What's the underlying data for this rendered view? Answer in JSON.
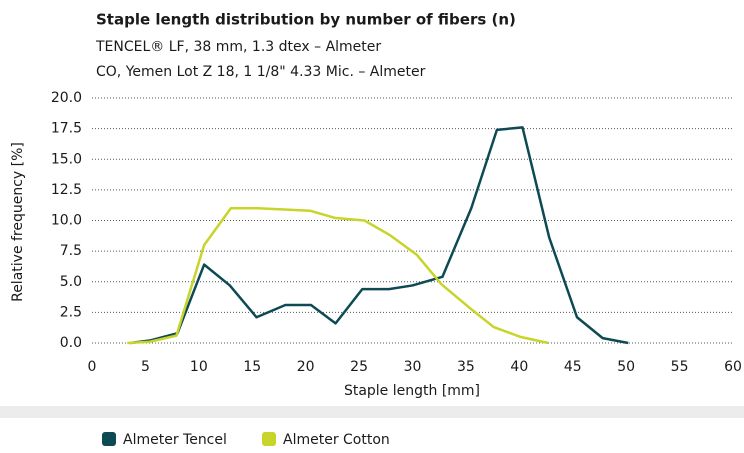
{
  "chart_data": {
    "type": "line",
    "title": "Staple length distribution by number of fibers (n)",
    "subtitle": [
      "TENCEL® LF, 38 mm, 1.3 dtex – Almeter",
      "CO, Yemen Lot Z 18, 1 1/8\" 4.33 Mic. – Almeter"
    ],
    "x_label": "Staple length [mm]",
    "y_label": "Relative frequency [%]",
    "xlim": [
      0,
      60
    ],
    "xticks": [
      0,
      5,
      10,
      15,
      20,
      25,
      30,
      35,
      40,
      45,
      50,
      55,
      60
    ],
    "ylim": [
      0,
      20
    ],
    "yticks": [
      {
        "value": 0,
        "label": "0.0"
      },
      {
        "value": 2.5,
        "label": "2.5"
      },
      {
        "value": 5,
        "label": "5.0"
      },
      {
        "value": 7.5,
        "label": "7.5"
      },
      {
        "value": 10,
        "label": "10.0"
      },
      {
        "value": 12.5,
        "label": "12.5"
      },
      {
        "value": 15,
        "label": "15.0"
      },
      {
        "value": 17.5,
        "label": "17.5"
      },
      {
        "value": 20,
        "label": "20.0"
      }
    ],
    "grid": true,
    "legend": "bottom",
    "series": [
      {
        "name": "Almeter Tencel",
        "color": "#0d4a53",
        "x": [
          3.6,
          5.4,
          8.0,
          10.5,
          12.9,
          15.4,
          18.1,
          20.5,
          22.8,
          25.3,
          27.8,
          30.0,
          32.8,
          35.5,
          37.9,
          40.3,
          42.8,
          45.4,
          47.8,
          50.2
        ],
        "values": [
          0,
          0.2,
          0.8,
          6.4,
          4.7,
          2.1,
          3.1,
          3.1,
          1.6,
          4.4,
          4.4,
          4.7,
          5.4,
          11,
          17.4,
          17.6,
          8.6,
          2.1,
          0.4,
          0
        ]
      },
      {
        "name": "Almeter Cotton",
        "color": "#c8d42a",
        "x": [
          3.3,
          5.4,
          7.9,
          10.5,
          13.0,
          15.5,
          18.0,
          20.4,
          22.8,
          25.5,
          27.9,
          30.4,
          32.7,
          35.3,
          37.6,
          40.1,
          42.7
        ],
        "values": [
          0,
          0.1,
          0.6,
          8.0,
          11.0,
          11.0,
          10.9,
          10.8,
          10.2,
          10.0,
          8.8,
          7.2,
          4.8,
          2.9,
          1.3,
          0.5,
          0
        ]
      }
    ]
  }
}
